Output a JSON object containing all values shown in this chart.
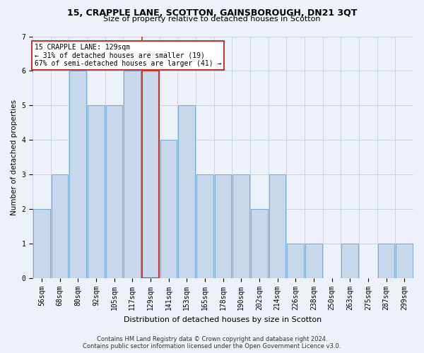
{
  "title1": "15, CRAPPLE LANE, SCOTTON, GAINSBOROUGH, DN21 3QT",
  "title2": "Size of property relative to detached houses in Scotton",
  "xlabel": "Distribution of detached houses by size in Scotton",
  "ylabel": "Number of detached properties",
  "footer1": "Contains HM Land Registry data © Crown copyright and database right 2024.",
  "footer2": "Contains public sector information licensed under the Open Government Licence v3.0.",
  "annotation_line1": "15 CRAPPLE LANE: 129sqm",
  "annotation_line2": "← 31% of detached houses are smaller (19)",
  "annotation_line3": "67% of semi-detached houses are larger (41) →",
  "categories": [
    "56sqm",
    "68sqm",
    "80sqm",
    "92sqm",
    "105sqm",
    "117sqm",
    "129sqm",
    "141sqm",
    "153sqm",
    "165sqm",
    "178sqm",
    "190sqm",
    "202sqm",
    "214sqm",
    "226sqm",
    "238sqm",
    "250sqm",
    "263sqm",
    "275sqm",
    "287sqm",
    "299sqm"
  ],
  "values": [
    2,
    3,
    6,
    5,
    5,
    6,
    6,
    4,
    5,
    3,
    3,
    3,
    2,
    3,
    1,
    1,
    0,
    1,
    0,
    1,
    1
  ],
  "highlight_index": 6,
  "bar_color": "#c8d8ec",
  "bar_edge_color": "#7aadd4",
  "highlight_edge_color": "#c0392b",
  "vline_color": "#c0392b",
  "annotation_box_edge_color": "#c0392b",
  "annotation_box_face_color": "white",
  "grid_color": "#c8d4e8",
  "background_color": "#edf2f8",
  "ylim": [
    0,
    7
  ],
  "yticks": [
    0,
    1,
    2,
    3,
    4,
    5,
    6,
    7
  ],
  "title1_fontsize": 9,
  "title2_fontsize": 8,
  "xlabel_fontsize": 8,
  "ylabel_fontsize": 7.5,
  "tick_fontsize": 7,
  "annotation_fontsize": 7,
  "footer_fontsize": 6
}
